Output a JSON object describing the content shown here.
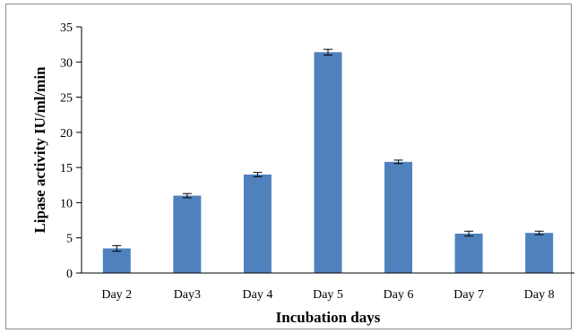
{
  "chart_data": {
    "type": "bar",
    "title": "",
    "xlabel": "Incubation days",
    "ylabel": "Lipase activity IU/ml/min",
    "categories": [
      "Day 2",
      "Day3",
      "Day 4",
      "Day 5",
      "Day 6",
      "Day 7",
      "Day 8"
    ],
    "values": [
      3.5,
      11.0,
      14.0,
      31.4,
      15.8,
      5.6,
      5.7
    ],
    "errors": [
      0.4,
      0.3,
      0.3,
      0.4,
      0.25,
      0.35,
      0.25
    ],
    "ylim": [
      0,
      35
    ],
    "yticks": [
      0,
      5,
      10,
      15,
      20,
      25,
      30,
      35
    ],
    "grid": false,
    "legend": "none",
    "colors": {
      "bar": "#4f81bd",
      "axis": "#000000",
      "border": "#8c8c8c"
    }
  }
}
